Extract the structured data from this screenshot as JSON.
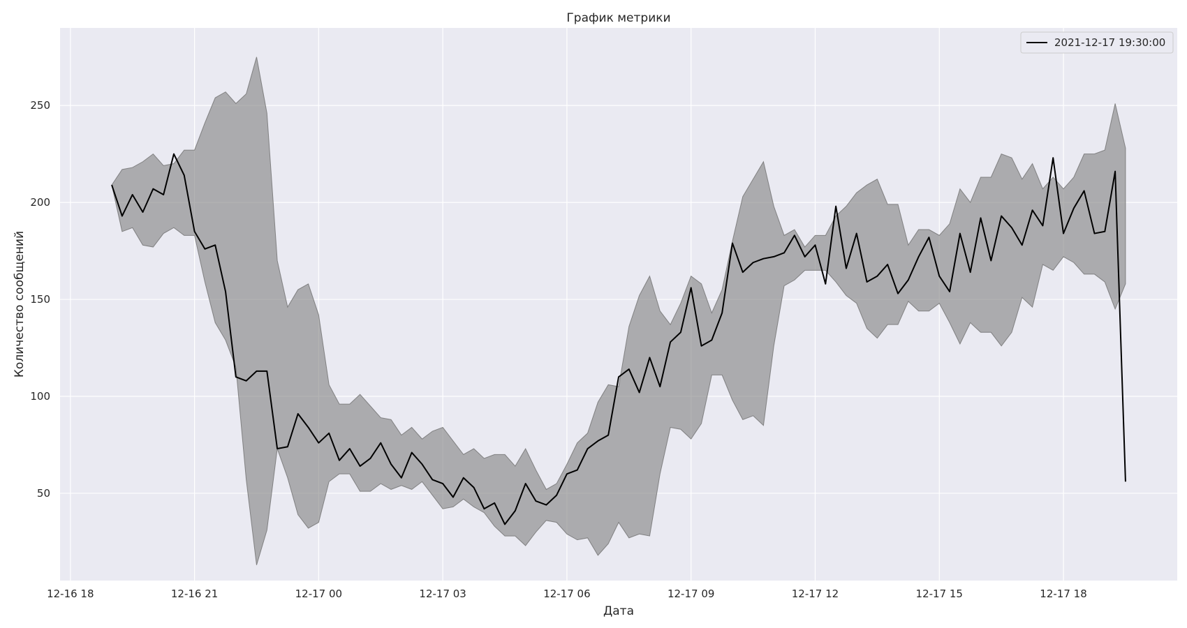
{
  "chart_data": {
    "type": "line",
    "title": "График метрики",
    "xlabel": "Дата",
    "ylabel": "Количество сообщений",
    "x_tick_labels": [
      "12-16 18",
      "12-16 21",
      "12-17 00",
      "12-17 03",
      "12-17 06",
      "12-17 09",
      "12-17 12",
      "12-17 15",
      "12-17 18"
    ],
    "y_ticks": [
      50,
      100,
      150,
      200,
      250
    ],
    "xlim": [
      "2021-12-16 17:45",
      "2021-12-17 20:45"
    ],
    "ylim": [
      5,
      290
    ],
    "grid": true,
    "legend_position": "top-right",
    "x_start": "2021-12-16 19:00",
    "x_interval_minutes": 15,
    "series": [
      {
        "name": "2021-12-17 19:30:00",
        "color": "#000000",
        "values": [
          209,
          193,
          204,
          195,
          207,
          204,
          225,
          214,
          185,
          176,
          178,
          154,
          110,
          108,
          113,
          113,
          73,
          74,
          91,
          84,
          76,
          81,
          67,
          73,
          64,
          68,
          76,
          65,
          58,
          71,
          65,
          57,
          55,
          48,
          58,
          53,
          42,
          45,
          34,
          41,
          55,
          46,
          44,
          49,
          60,
          62,
          73,
          77,
          80,
          110,
          114,
          102,
          120,
          105,
          128,
          133,
          156,
          126,
          129,
          143,
          179,
          164,
          169,
          171,
          172,
          174,
          183,
          172,
          178,
          158,
          198,
          166,
          184,
          159,
          162,
          168,
          153,
          160,
          172,
          182,
          162,
          154,
          184,
          164,
          192,
          170,
          193,
          187,
          178,
          196,
          188,
          223,
          184,
          197,
          206,
          184,
          185,
          216,
          56
        ]
      }
    ],
    "band": {
      "color": "#808080",
      "upper": [
        209,
        217,
        218,
        221,
        225,
        219,
        220,
        227,
        227,
        241,
        254,
        257,
        251,
        256,
        275,
        246,
        170,
        146,
        155,
        158,
        142,
        106,
        96,
        96,
        101,
        95,
        89,
        88,
        80,
        84,
        78,
        82,
        84,
        77,
        70,
        73,
        68,
        70,
        70,
        64,
        73,
        62,
        52,
        55,
        65,
        76,
        81,
        97,
        106,
        105,
        136,
        152,
        162,
        144,
        137,
        148,
        162,
        158,
        143,
        155,
        180,
        203,
        212,
        221,
        198,
        183,
        186,
        177,
        183,
        183,
        193,
        198,
        205,
        209,
        212,
        199,
        199,
        178,
        186,
        186,
        183,
        189,
        207,
        200,
        213,
        213,
        225,
        223,
        212,
        220,
        207,
        213,
        207,
        213,
        225,
        225,
        227,
        251,
        228
      ],
      "lower": [
        209,
        185,
        187,
        178,
        177,
        184,
        187,
        183,
        183,
        159,
        138,
        129,
        115,
        57,
        13,
        31,
        73,
        58,
        39,
        32,
        35,
        56,
        60,
        60,
        51,
        51,
        55,
        52,
        54,
        52,
        56,
        49,
        42,
        43,
        47,
        43,
        40,
        33,
        28,
        28,
        23,
        30,
        36,
        35,
        29,
        26,
        27,
        18,
        24,
        35,
        27,
        29,
        28,
        60,
        84,
        83,
        78,
        86,
        111,
        111,
        98,
        88,
        90,
        85,
        126,
        157,
        160,
        165,
        165,
        165,
        159,
        152,
        148,
        135,
        130,
        137,
        137,
        149,
        144,
        144,
        148,
        138,
        127,
        138,
        133,
        133,
        126,
        133,
        151,
        146,
        168,
        165,
        172,
        169,
        163,
        163,
        159,
        145,
        158
      ]
    }
  }
}
